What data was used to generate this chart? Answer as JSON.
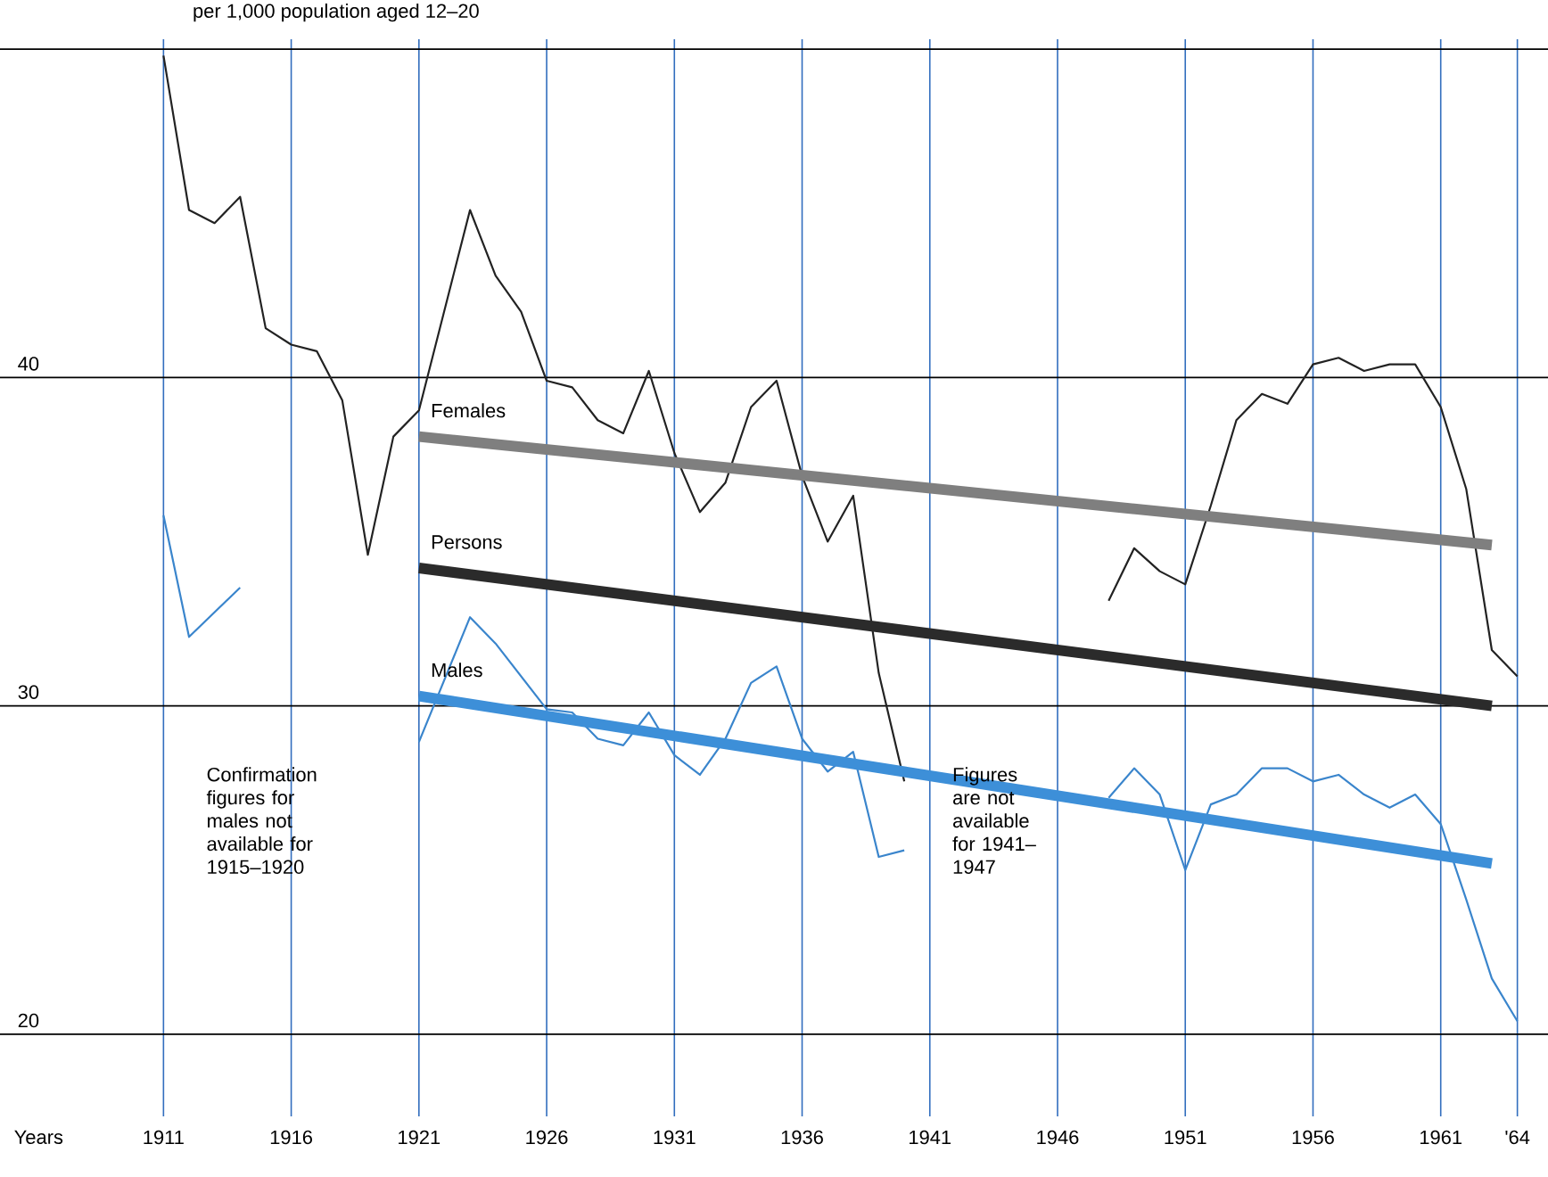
{
  "chart_data": {
    "type": "line",
    "title": "per 1,000 population aged 12–20",
    "xlabel": "Years",
    "xlim": [
      1904.6,
      1965.2
    ],
    "ylim": [
      17.5,
      50.3
    ],
    "xticks": [
      1911,
      1916,
      1921,
      1926,
      1931,
      1936,
      1941,
      1946,
      1951,
      1956,
      1961,
      {
        "value": 1964,
        "label": "'64"
      }
    ],
    "yticks": [
      20,
      30,
      40,
      {
        "value": 50,
        "label": null
      }
    ],
    "grid": true,
    "marker": "none",
    "line_style": "solid",
    "annotations": [
      "Confirmation figures for males not available for 1915–1920",
      "Figures are not available for 1941–1947"
    ],
    "series": [
      {
        "color": "#222222",
        "x": [
          1911,
          1912,
          1913,
          1914,
          1915,
          1916,
          1917,
          1918,
          1919,
          1920,
          1921,
          1923,
          1924,
          1925,
          1926,
          1927,
          1928,
          1929,
          1930,
          1931,
          1932,
          1933,
          1934,
          1935,
          1936,
          1937,
          1938,
          1939,
          1940,
          1944,
          1948,
          1949,
          1950,
          1951,
          1952,
          1953,
          1954,
          1955,
          1956,
          1957,
          1958,
          1959,
          1960,
          1961,
          1962,
          1963,
          1964
        ],
        "values": [
          49.8,
          45.1,
          44.7,
          45.5,
          41.5,
          41.0,
          40.8,
          39.3,
          34.6,
          38.2,
          39.0,
          45.1,
          43.1,
          42.0,
          39.9,
          39.7,
          38.7,
          38.3,
          40.2,
          37.7,
          35.9,
          36.8,
          39.1,
          39.9,
          37.0,
          35.0,
          36.4,
          31.0,
          27.7,
          null,
          33.2,
          34.8,
          34.1,
          33.7,
          36.1,
          38.7,
          39.5,
          39.2,
          40.4,
          40.6,
          40.2,
          40.4,
          40.4,
          39.1,
          36.6,
          31.7,
          30.9
        ]
      },
      {
        "color": "#3a85cc",
        "x": [
          1911,
          1912,
          1914,
          1917,
          1921,
          1923,
          1924,
          1926,
          1927,
          1928,
          1929,
          1930,
          1931,
          1932,
          1933,
          1934,
          1935,
          1936,
          1937,
          1938,
          1939,
          1940,
          1944,
          1948,
          1949,
          1950,
          1951,
          1952,
          1953,
          1954,
          1955,
          1956,
          1957,
          1958,
          1959,
          1960,
          1961,
          1962,
          1963,
          1964
        ],
        "values": [
          35.8,
          32.1,
          33.6,
          null,
          28.9,
          32.7,
          31.9,
          29.9,
          29.8,
          29.0,
          28.8,
          29.8,
          28.5,
          27.9,
          29.0,
          30.7,
          31.2,
          29.0,
          28.0,
          28.6,
          25.4,
          25.6,
          null,
          27.2,
          28.1,
          27.3,
          25.0,
          27.0,
          27.3,
          28.1,
          28.1,
          27.7,
          27.9,
          27.3,
          26.9,
          27.3,
          26.4,
          24.1,
          21.7,
          20.4
        ]
      },
      {
        "name": "Females",
        "color": "#7f7f7f",
        "x": [
          1921,
          1963
        ],
        "values": [
          38.2,
          34.9
        ]
      },
      {
        "name": "Persons",
        "color": "#2b2b2b",
        "x": [
          1921,
          1963
        ],
        "values": [
          34.2,
          30.0
        ]
      },
      {
        "name": "Males",
        "color": "#3d8fd8",
        "x": [
          1921,
          1963
        ],
        "values": [
          30.3,
          25.2
        ]
      }
    ]
  }
}
